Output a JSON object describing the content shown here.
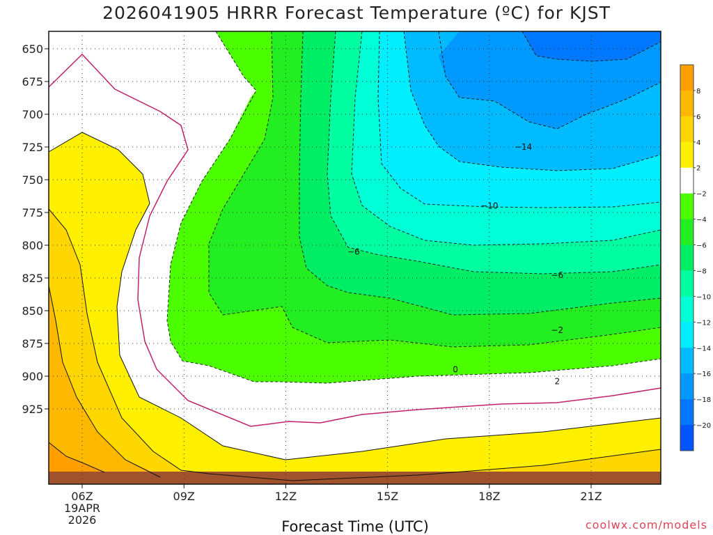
{
  "title": "2026041905 HRRR Forecast Temperature (ºC) for KJST",
  "credit": "coolwx.com/models",
  "chart_data": {
    "type": "heatmap",
    "title": "2026041905 HRRR Forecast Temperature (ºC) for KJST",
    "xlabel": "Forecast Time (UTC)",
    "ylabel": "",
    "x_ticks": [
      "06Z",
      "09Z",
      "12Z",
      "15Z",
      "18Z",
      "21Z"
    ],
    "x_first_tick_date": [
      "19APR",
      "2026"
    ],
    "y_ticks": [
      650,
      675,
      700,
      725,
      750,
      775,
      800,
      825,
      850,
      875,
      900,
      925
    ],
    "y_axis_inverted": true,
    "grid": true,
    "colorbar": {
      "levels": [
        8,
        6,
        4,
        2,
        -2,
        -4,
        -6,
        -8,
        -10,
        -12,
        -14,
        -16,
        -18,
        -20
      ],
      "labels": [
        "8",
        "6",
        "4",
        "2",
        "−2",
        "−4",
        "−6",
        "−8",
        "−10",
        "−12",
        "−14",
        "−16",
        "−18",
        "−20"
      ],
      "colors": [
        "#ff9f00",
        "#ffb800",
        "#ffd700",
        "#fff000",
        "#ffffff",
        "#4cff00",
        "#22ee22",
        "#00ee66",
        "#00ffa0",
        "#00ffd6",
        "#00eeff",
        "#00bbff",
        "#0099ff",
        "#0077ff",
        "#0055ff"
      ]
    },
    "contour_labels": [
      {
        "text": "−14",
        "time": "19Z",
        "p": 725
      },
      {
        "text": "−10",
        "time": "18Z",
        "p": 770
      },
      {
        "text": "−6",
        "time": "14Z",
        "p": 805
      },
      {
        "text": "−6",
        "time": "20Z",
        "p": 823
      },
      {
        "text": "−2",
        "time": "20Z",
        "p": 865
      },
      {
        "text": "0",
        "time": "17Z",
        "p": 895
      },
      {
        "text": "2",
        "time": "20Z",
        "p": 904
      }
    ],
    "ground_color": "#a0522d"
  }
}
